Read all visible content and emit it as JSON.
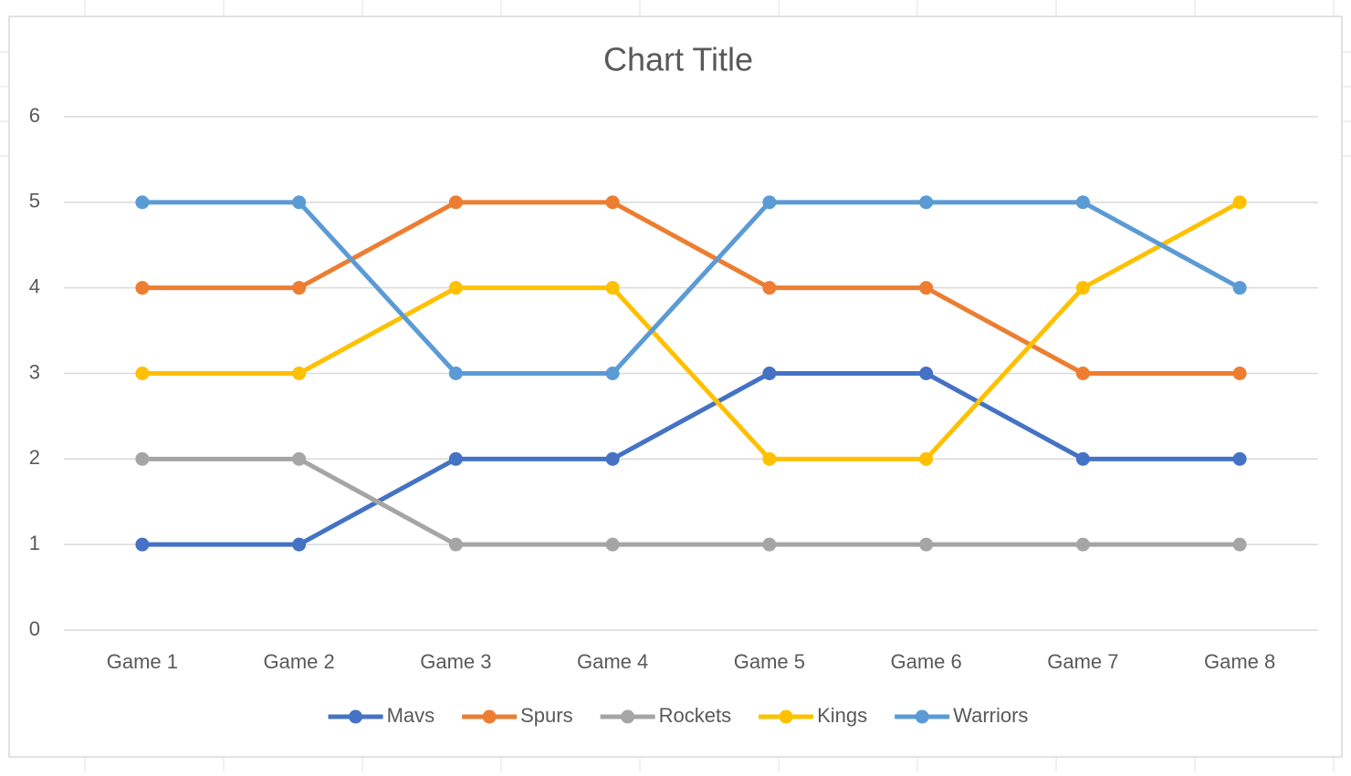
{
  "chart_data": {
    "type": "line",
    "title": "Chart Title",
    "categories": [
      "Game 1",
      "Game 2",
      "Game 3",
      "Game 4",
      "Game 5",
      "Game 6",
      "Game 7",
      "Game 8"
    ],
    "series": [
      {
        "name": "Mavs",
        "color": "#4472c4",
        "values": [
          1,
          1,
          2,
          2,
          3,
          3,
          2,
          2
        ]
      },
      {
        "name": "Spurs",
        "color": "#ed7d31",
        "values": [
          4,
          4,
          5,
          5,
          4,
          4,
          3,
          3
        ]
      },
      {
        "name": "Rockets",
        "color": "#a5a5a5",
        "values": [
          2,
          2,
          1,
          1,
          1,
          1,
          1,
          1
        ]
      },
      {
        "name": "Kings",
        "color": "#ffc000",
        "values": [
          3,
          3,
          4,
          4,
          2,
          2,
          4,
          5
        ]
      },
      {
        "name": "Warriors",
        "color": "#5b9bd5",
        "values": [
          5,
          5,
          3,
          3,
          5,
          5,
          5,
          4
        ]
      }
    ],
    "ylim": [
      0,
      6
    ],
    "yticks": [
      0,
      1,
      2,
      3,
      4,
      5,
      6
    ],
    "grid": true,
    "legend": "bottom"
  }
}
